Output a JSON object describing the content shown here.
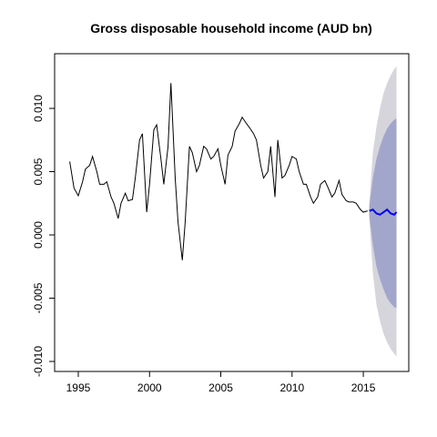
{
  "chart_data": {
    "type": "forecast",
    "title": "Gross disposable household income (AUD bn)",
    "xlim": [
      1993.34,
      2018.19
    ],
    "xticks": [
      1995,
      2000,
      2005,
      2010,
      2015
    ],
    "ylim": [
      -0.01079,
      0.01432
    ],
    "yticks": [
      {
        "value": -0.01,
        "label": "-0.010"
      },
      {
        "value": -0.005,
        "label": "-0.005"
      },
      {
        "value": 0,
        "label": "0.000"
      },
      {
        "value": 0.005,
        "label": "0.005"
      },
      {
        "value": 0.01,
        "label": "0.010"
      }
    ],
    "x": [
      1994.4,
      1994.7,
      1995.0,
      1995.3,
      1995.5,
      1995.8,
      1996.0,
      1996.3,
      1996.5,
      1996.8,
      1997.0,
      1997.3,
      1997.5,
      1997.8,
      1998.0,
      1998.3,
      1998.5,
      1998.8,
      1999.0,
      1999.3,
      1999.5,
      1999.8,
      2000.0,
      2000.3,
      2000.5,
      2000.8,
      2001.0,
      2001.3,
      2001.5,
      2001.8,
      2002.0,
      2002.3,
      2002.5,
      2002.8,
      2003.0,
      2003.3,
      2003.5,
      2003.8,
      2004.0,
      2004.3,
      2004.5,
      2004.8,
      2005.0,
      2005.3,
      2005.5,
      2005.8,
      2006.0,
      2006.3,
      2006.5,
      2006.8,
      2007.0,
      2007.3,
      2007.5,
      2007.8,
      2008.0,
      2008.3,
      2008.5,
      2008.8,
      2009.0,
      2009.3,
      2009.5,
      2009.8,
      2010.0,
      2010.3,
      2010.5,
      2010.8,
      2011.0,
      2011.3,
      2011.5,
      2011.8,
      2012.0,
      2012.3,
      2012.5,
      2012.8,
      2013.0,
      2013.3,
      2013.5,
      2013.8,
      2014.0,
      2014.3,
      2014.5,
      2014.8,
      2015.0,
      2015.3
    ],
    "values": [
      0.0058,
      0.0037,
      0.0031,
      0.0042,
      0.0052,
      0.0055,
      0.0062,
      0.005,
      0.004,
      0.004,
      0.0042,
      0.003,
      0.0025,
      0.0013,
      0.0025,
      0.0033,
      0.0027,
      0.0028,
      0.0045,
      0.0075,
      0.008,
      0.0018,
      0.004,
      0.0083,
      0.0087,
      0.006,
      0.004,
      0.007,
      0.012,
      0.0045,
      0.001,
      -0.002,
      0.001,
      0.007,
      0.0065,
      0.005,
      0.0055,
      0.007,
      0.0068,
      0.006,
      0.0062,
      0.0068,
      0.0055,
      0.004,
      0.0063,
      0.007,
      0.0082,
      0.0088,
      0.0093,
      0.0088,
      0.0085,
      0.008,
      0.0075,
      0.0055,
      0.0045,
      0.005,
      0.007,
      0.003,
      0.0075,
      0.0045,
      0.0047,
      0.0055,
      0.0062,
      0.006,
      0.005,
      0.004,
      0.004,
      0.003,
      0.0025,
      0.003,
      0.004,
      0.0043,
      0.0038,
      0.003,
      0.0033,
      0.0043,
      0.0032,
      0.0027,
      0.0026,
      0.0026,
      0.0025,
      0.002,
      0.0018,
      0.0019
    ],
    "color": "#000000",
    "forecast": {
      "x": [
        2015.42,
        2015.67,
        2015.92,
        2016.17,
        2016.42,
        2016.67,
        2016.92,
        2017.17,
        2017.33
      ],
      "values": [
        0.0019,
        0.002,
        0.0017,
        0.0016,
        0.0018,
        0.002,
        0.0017,
        0.0016,
        0.0018
      ],
      "color": "#0000ee",
      "hi95": [
        0.0025,
        0.0065,
        0.0085,
        0.01,
        0.0112,
        0.012,
        0.0126,
        0.0131,
        0.0133
      ],
      "lo95": [
        0.0013,
        -0.003,
        -0.0055,
        -0.0068,
        -0.0078,
        -0.0085,
        -0.009,
        -0.0094,
        -0.0096
      ],
      "hi80": [
        0.0023,
        0.0045,
        0.006,
        0.007,
        0.0078,
        0.0084,
        0.0088,
        0.0091,
        0.0092
      ],
      "lo80": [
        0.0015,
        -0.0008,
        -0.0025,
        -0.0035,
        -0.0043,
        -0.005,
        -0.0054,
        -0.0057,
        -0.0058
      ],
      "color95": "#d5d5db",
      "color80": "#a3a6cb"
    }
  }
}
